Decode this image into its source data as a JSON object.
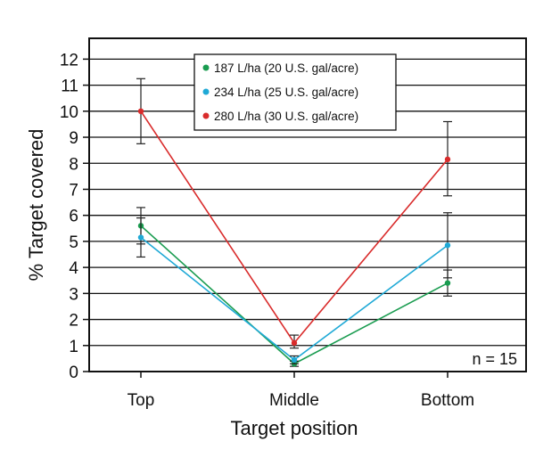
{
  "chart_data": {
    "type": "line",
    "xlabel": "Target position",
    "ylabel": "% Target covered",
    "categories": [
      "Top",
      "Middle",
      "Bottom"
    ],
    "ylim": [
      0,
      12.8
    ],
    "yticks": [
      0,
      1,
      2,
      3,
      4,
      5,
      6,
      7,
      8,
      9,
      10,
      11,
      12
    ],
    "grid": "horizontal",
    "legend_position": "top-center",
    "note": "n = 15",
    "series": [
      {
        "name": "187 L/ha (20 U.S. gal/acre)",
        "color": "#1a9c50",
        "values": [
          5.6,
          0.3,
          3.4
        ],
        "err_low": [
          4.9,
          0.2,
          2.9
        ],
        "err_high": [
          6.3,
          0.4,
          3.9
        ]
      },
      {
        "name": "234 L/ha (25 U.S. gal/acre)",
        "color": "#1fa9d6",
        "values": [
          5.15,
          0.45,
          4.85
        ],
        "err_low": [
          4.4,
          0.3,
          3.6
        ],
        "err_high": [
          5.9,
          0.6,
          6.1
        ]
      },
      {
        "name": "280 L/ha (30 U.S. gal/acre)",
        "color": "#d92b2b",
        "values": [
          10.0,
          1.1,
          8.15
        ],
        "err_low": [
          8.75,
          0.9,
          6.75
        ],
        "err_high": [
          11.25,
          1.4,
          9.6
        ]
      }
    ]
  }
}
